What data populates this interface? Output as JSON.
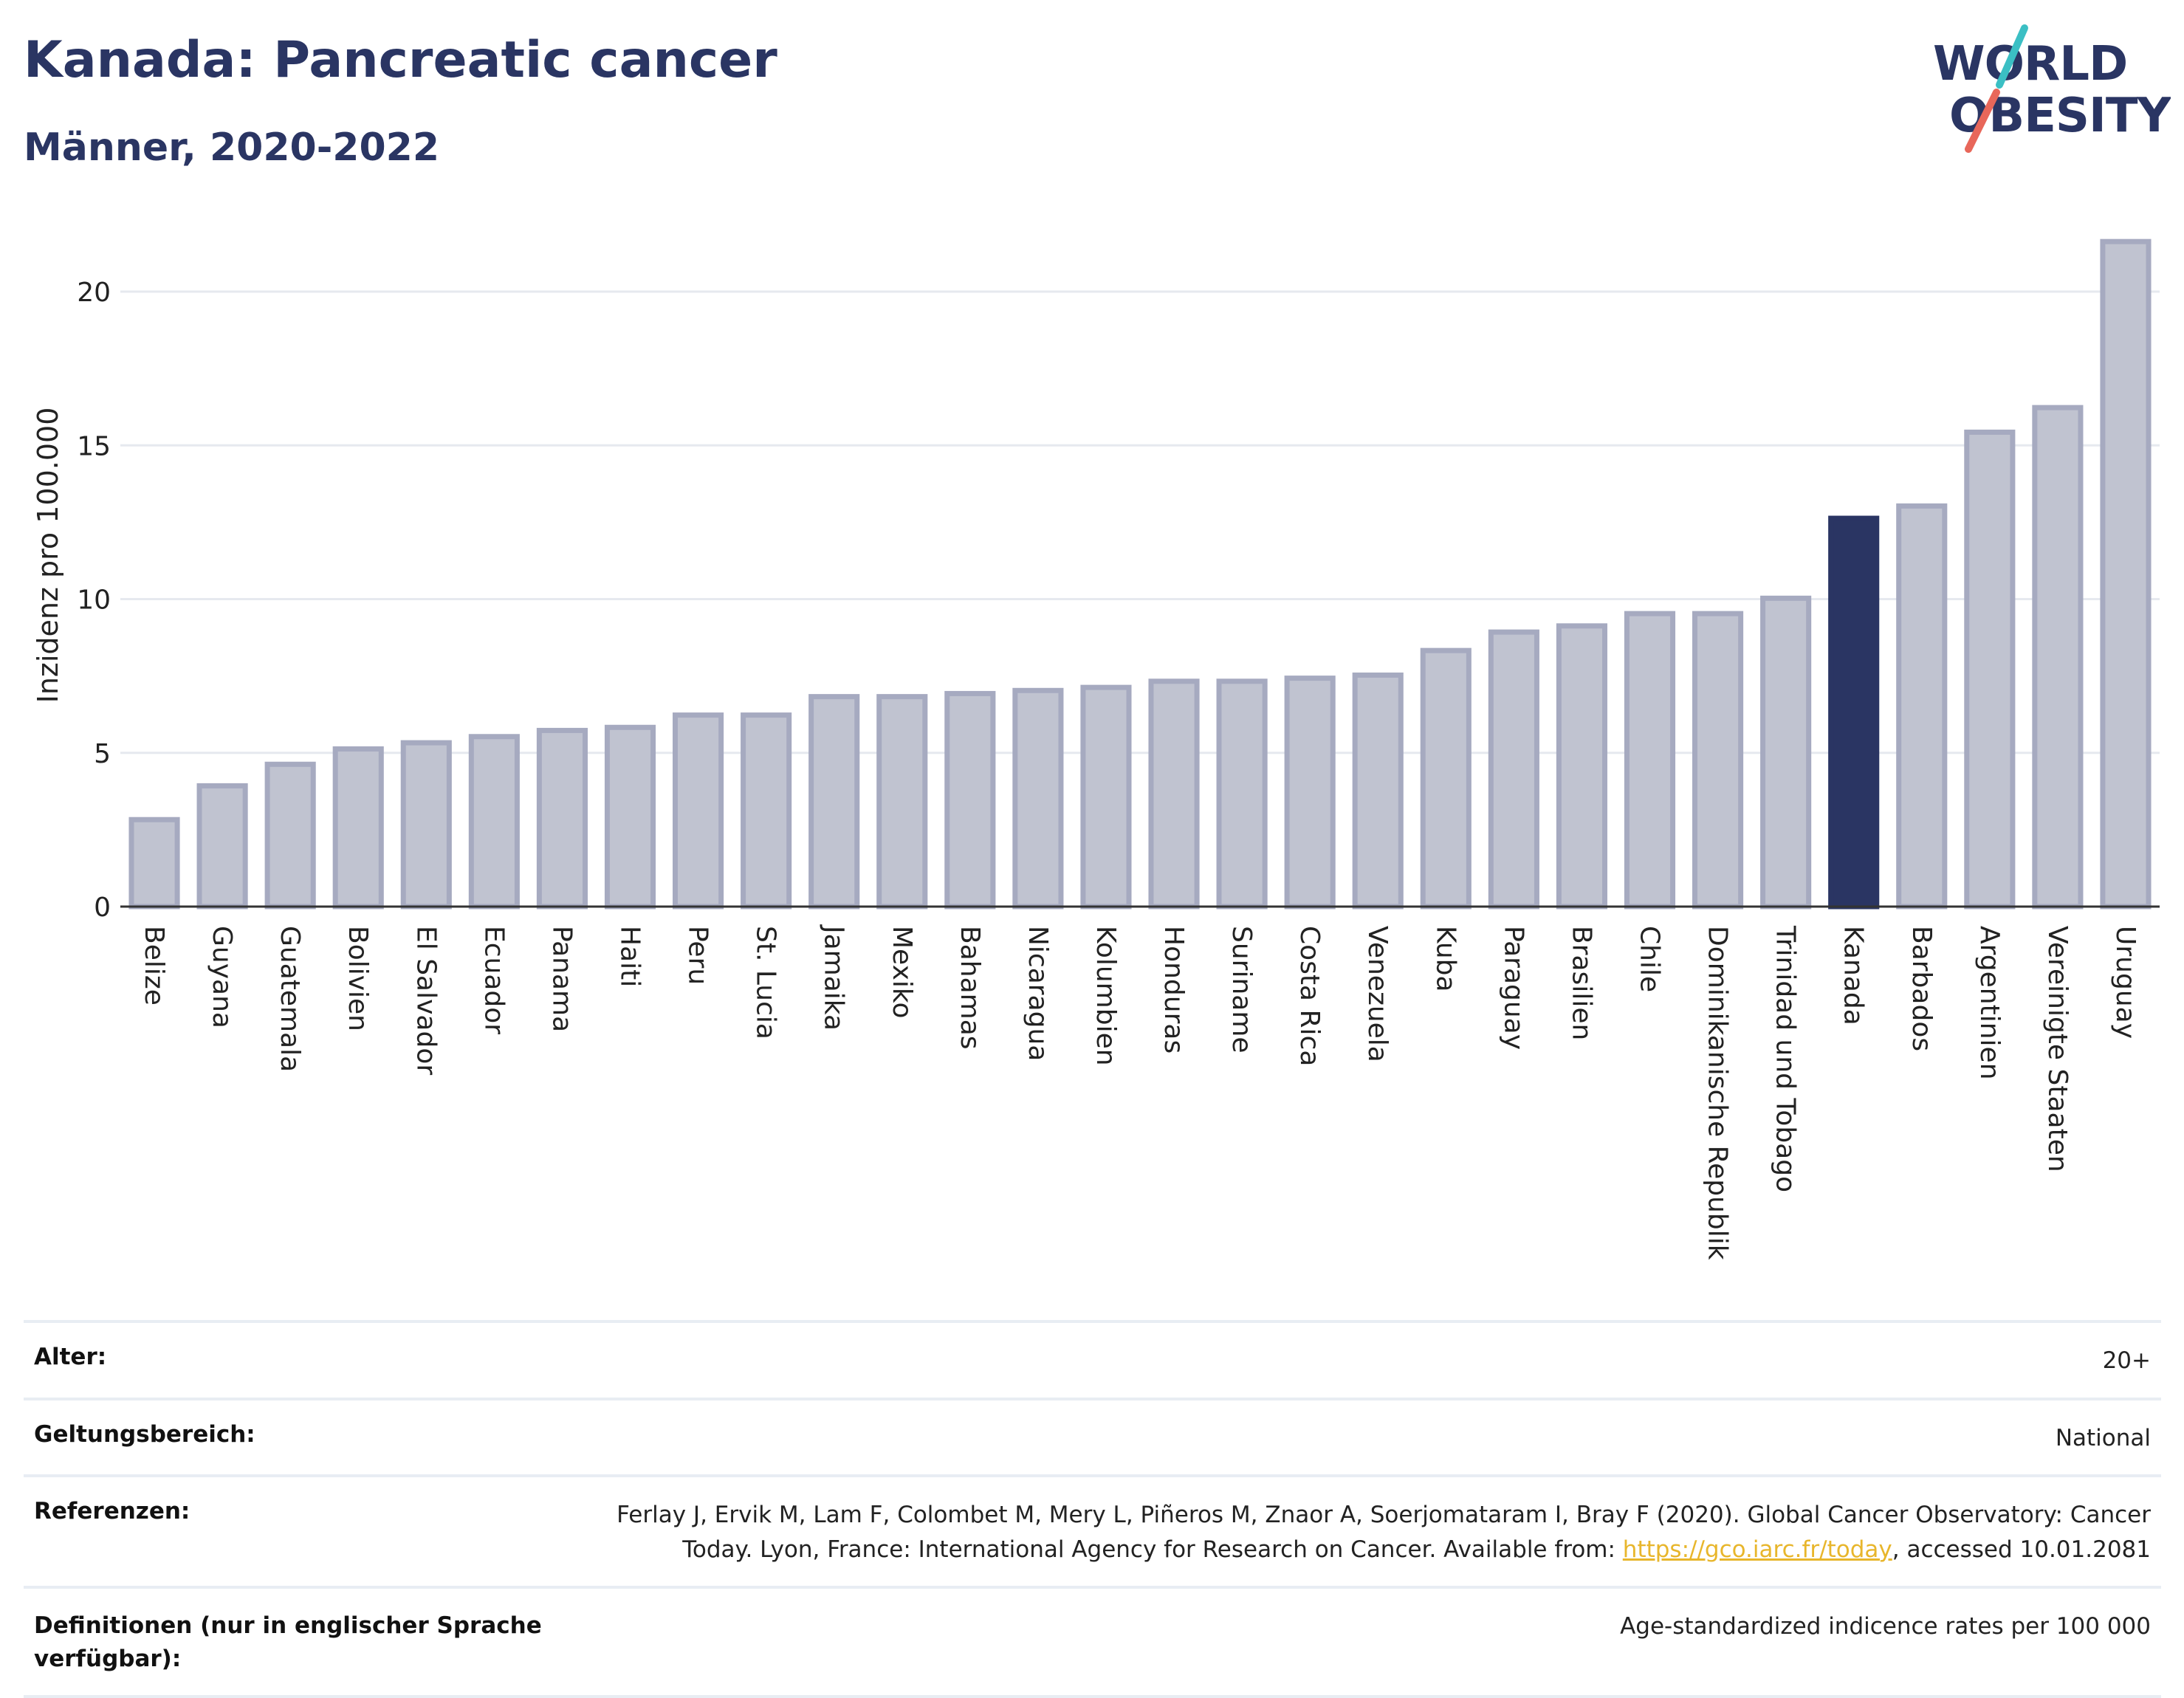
{
  "header": {
    "title": "Kanada: Pancreatic cancer",
    "subtitle": "Männer, 2020-2022"
  },
  "logo": {
    "line1": "WORLD",
    "line2": "OBESITY",
    "colors": {
      "text": "#2a3563",
      "slash_top": "#3bbfc4",
      "slash_bottom": "#e8675a"
    }
  },
  "chart_data": {
    "type": "bar",
    "ylabel": "Inzidenz pro 100.000",
    "ylim": [
      0,
      22
    ],
    "yticks": [
      0,
      5,
      10,
      15,
      20
    ],
    "grid": true,
    "highlight": "Kanada",
    "colors": {
      "bar": "#c0c3d0",
      "bar_border": "#a6aac0",
      "highlight": "#2a3563",
      "grid": "#e6e9ef"
    },
    "categories": [
      "Belize",
      "Guyana",
      "Guatemala",
      "Bolivien",
      "El Salvador",
      "Ecuador",
      "Panama",
      "Haiti",
      "Peru",
      "St. Lucia",
      "Jamaika",
      "Mexiko",
      "Bahamas",
      "Nicaragua",
      "Kolumbien",
      "Honduras",
      "Suriname",
      "Costa Rica",
      "Venezuela",
      "Kuba",
      "Paraguay",
      "Brasilien",
      "Chile",
      "Dominikanische Republik",
      "Trinidad und Tobago",
      "Kanada",
      "Barbados",
      "Argentinien",
      "Vereinigte Staaten",
      "Uruguay"
    ],
    "values": [
      2.9,
      4.0,
      4.7,
      5.2,
      5.4,
      5.6,
      5.8,
      5.9,
      6.3,
      6.3,
      6.9,
      6.9,
      7.0,
      7.1,
      7.2,
      7.4,
      7.4,
      7.5,
      7.6,
      8.4,
      9.0,
      9.2,
      9.6,
      9.6,
      10.1,
      12.7,
      13.1,
      15.5,
      16.3,
      21.7
    ]
  },
  "meta": {
    "age_label": "Alter:",
    "age_value": "20+",
    "scope_label": "Geltungsbereich:",
    "scope_value": "National",
    "ref_label": "Referenzen:",
    "ref_text_1": "Ferlay J, Ervik M, Lam F, Colombet M, Mery L, Piñeros M, Znaor A, Soerjomataram I, Bray F (2020). Global Cancer Observatory: Cancer Today. Lyon, France: International Agency for Research on Cancer. Available from: ",
    "ref_link": "https://gco.iarc.fr/today",
    "ref_text_2": ", accessed 10.01.2081",
    "def_label": "Definitionen (nur in englischer Sprache verfügbar):",
    "def_value": "Age-standardized indicence rates per 100 000"
  }
}
